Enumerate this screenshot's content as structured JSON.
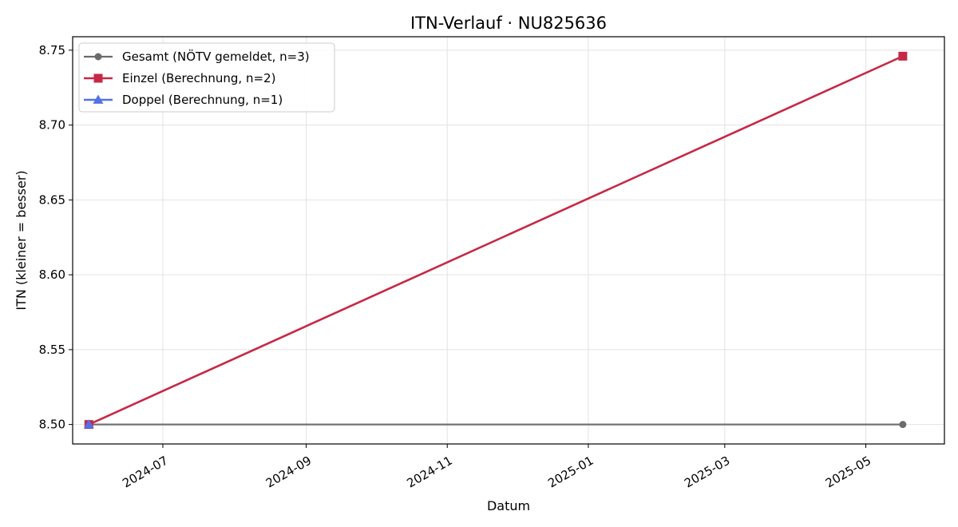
{
  "chart_data": {
    "type": "line",
    "title": "ITN-Verlauf · NU825636",
    "xlabel": "Datum",
    "ylabel": "ITN  (kleiner = besser)",
    "x_type": "date",
    "xlim": [
      "2024-05-23",
      "2025-06-04"
    ],
    "ylim": [
      8.487,
      8.759
    ],
    "x_ticks": [
      "2024-07-01",
      "2024-09-01",
      "2024-11-01",
      "2025-01-01",
      "2025-03-01",
      "2025-05-01"
    ],
    "x_tick_labels": [
      "2024-07",
      "2024-09",
      "2024-11",
      "2025-01",
      "2025-03",
      "2025-05"
    ],
    "y_ticks": [
      8.5,
      8.55,
      8.6,
      8.65,
      8.7,
      8.75
    ],
    "y_tick_labels": [
      "8.50",
      "8.55",
      "8.60",
      "8.65",
      "8.70",
      "8.75"
    ],
    "grid": true,
    "legend_position": "top-left",
    "series": [
      {
        "name": "Gesamt (NÖTV gemeldet, n=3)",
        "color": "#6b6b6b",
        "marker": "circle",
        "points": [
          {
            "x": "2024-05-30",
            "y": 8.5
          },
          {
            "x": "2025-05-17",
            "y": 8.5
          }
        ]
      },
      {
        "name": "Einzel (Berechnung, n=2)",
        "color": "#c62846",
        "marker": "square",
        "points": [
          {
            "x": "2024-05-30",
            "y": 8.5
          },
          {
            "x": "2025-05-17",
            "y": 8.746
          }
        ]
      },
      {
        "name": "Doppel (Berechnung, n=1)",
        "color": "#5470e8",
        "marker": "triangle",
        "points": [
          {
            "x": "2024-05-30",
            "y": 8.5
          }
        ]
      }
    ]
  }
}
